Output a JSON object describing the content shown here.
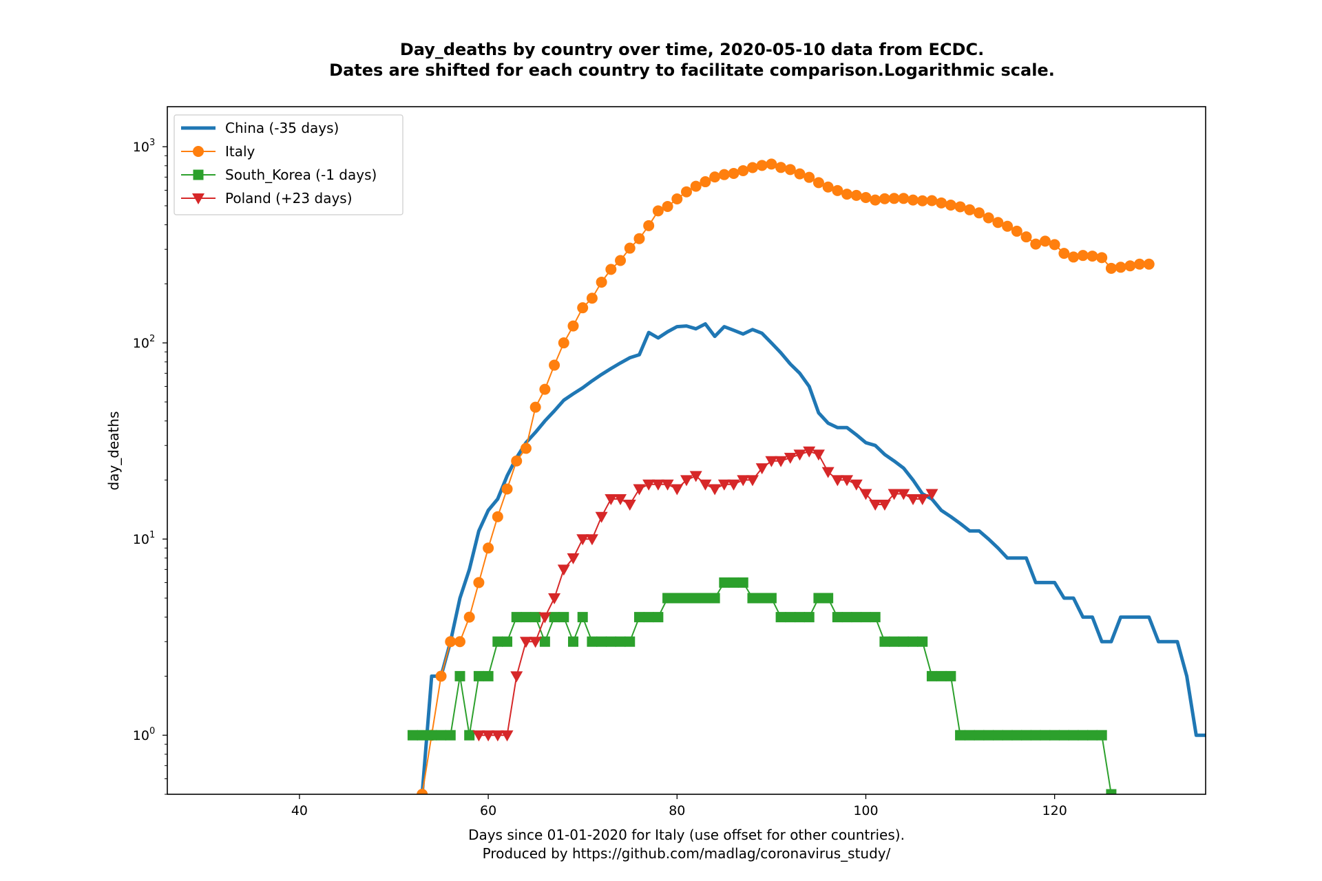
{
  "chart_data": {
    "type": "line",
    "title": [
      "Day_deaths by country over time, 2020-05-10 data from ECDC.",
      "Dates are shifted for each country to facilitate comparison.Logarithmic scale."
    ],
    "xlabel": [
      "Days since 01-01-2020 for Italy (use offset for other countries).",
      "Produced by https://github.com/madlag/coronavirus_study/"
    ],
    "ylabel": "day_deaths",
    "xlim": [
      26,
      136
    ],
    "ylim": [
      0.5,
      1600
    ],
    "yscale": "log",
    "grid": false,
    "legend_position": "top-left",
    "x_ticks": [
      40,
      60,
      80,
      100,
      120
    ],
    "y_ticks": [
      {
        "base": "10",
        "exp": "0",
        "value": 1
      },
      {
        "base": "10",
        "exp": "1",
        "value": 10
      },
      {
        "base": "10",
        "exp": "2",
        "value": 100
      },
      {
        "base": "10",
        "exp": "3",
        "value": 1000
      }
    ],
    "series": [
      {
        "name": "China (-35 days)",
        "color": "#1f77b4",
        "marker": "none",
        "linewidth": 5,
        "x": [
          53,
          54,
          55,
          56,
          57,
          58,
          59,
          60,
          61,
          62,
          63,
          64,
          65,
          66,
          67,
          68,
          69,
          70,
          71,
          72,
          73,
          74,
          75,
          76,
          77,
          78,
          79,
          80,
          81,
          82,
          83,
          84,
          85,
          86,
          87,
          88,
          89,
          90,
          91,
          92,
          93,
          94,
          95,
          96,
          97,
          98,
          99,
          100,
          101,
          102,
          103,
          104,
          105,
          106,
          107,
          108,
          109,
          110,
          111,
          112,
          113,
          114,
          115,
          116,
          117,
          118,
          119,
          120,
          121,
          122,
          123,
          124,
          125,
          126,
          127,
          128,
          129,
          130,
          131,
          132,
          133,
          134,
          135,
          136
        ],
        "y": [
          0.5,
          2,
          2,
          3,
          5,
          7,
          11,
          14,
          16,
          21,
          26,
          31,
          35,
          40,
          45,
          51,
          55,
          59,
          64,
          69,
          74,
          79,
          84,
          87,
          113,
          106,
          114,
          121,
          122,
          118,
          125,
          108,
          121,
          116,
          111,
          117,
          112,
          100,
          89,
          78,
          70,
          60,
          44,
          39,
          37,
          37,
          34,
          31,
          30,
          27,
          25,
          23,
          20,
          17,
          16,
          14,
          13,
          12,
          11,
          11,
          10,
          9,
          8,
          8,
          8,
          6,
          6,
          6,
          5,
          5,
          4,
          4,
          3,
          3,
          4,
          4,
          4,
          4,
          3,
          3,
          3,
          2,
          1,
          1
        ]
      },
      {
        "name": "Italy",
        "color": "#ff7f0e",
        "marker": "circle",
        "linewidth": 2,
        "x": [
          53,
          54,
          55,
          56,
          57,
          58,
          59,
          60,
          61,
          62,
          63,
          64,
          65,
          66,
          67,
          68,
          69,
          70,
          71,
          72,
          73,
          74,
          75,
          76,
          77,
          78,
          79,
          80,
          81,
          82,
          83,
          84,
          85,
          86,
          87,
          88,
          89,
          90,
          91,
          92,
          93,
          94,
          95,
          96,
          97,
          98,
          99,
          100,
          101,
          102,
          103,
          104,
          105,
          106,
          107,
          108,
          109,
          110,
          111,
          112,
          113,
          114,
          115,
          116,
          117,
          118,
          119,
          120,
          121,
          122,
          123,
          124,
          125,
          126,
          127,
          128,
          129,
          130
        ],
        "y": [
          0.5,
          1,
          2,
          3,
          3,
          4,
          6,
          9,
          13,
          18,
          25,
          29,
          47,
          58,
          77,
          100,
          122,
          151,
          169,
          204,
          237,
          263,
          304,
          340,
          396,
          471,
          496,
          542,
          589,
          629,
          663,
          701,
          721,
          731,
          755,
          783,
          803,
          816,
          784,
          765,
          727,
          698,
          656,
          623,
          598,
          573,
          565,
          551,
          535,
          543,
          545,
          545,
          535,
          530,
          531,
          517,
          504,
          494,
          477,
          460,
          434,
          411,
          393,
          371,
          347,
          319,
          330,
          317,
          286,
          274,
          279,
          277,
          272,
          240,
          243,
          247,
          252,
          252
        ]
      },
      {
        "name": "South_Korea (-1 days)",
        "color": "#2ca02c",
        "marker": "square",
        "linewidth": 2,
        "x": [
          52,
          53,
          54,
          55,
          56,
          57,
          58,
          59,
          60,
          61,
          62,
          63,
          64,
          65,
          66,
          67,
          68,
          69,
          70,
          71,
          72,
          73,
          74,
          75,
          76,
          77,
          78,
          79,
          80,
          81,
          82,
          83,
          84,
          85,
          86,
          87,
          88,
          89,
          90,
          91,
          92,
          93,
          94,
          95,
          96,
          97,
          98,
          99,
          100,
          101,
          102,
          103,
          104,
          105,
          106,
          107,
          108,
          109,
          110,
          111,
          112,
          113,
          114,
          115,
          116,
          117,
          118,
          119,
          120,
          121,
          122,
          123,
          124,
          125,
          126
        ],
        "y": [
          1,
          1,
          1,
          1,
          1,
          2,
          1,
          2,
          2,
          3,
          3,
          4,
          4,
          4,
          3,
          4,
          4,
          3,
          4,
          3,
          3,
          3,
          3,
          3,
          4,
          4,
          4,
          5,
          5,
          5,
          5,
          5,
          5,
          6,
          6,
          6,
          5,
          5,
          5,
          4,
          4,
          4,
          4,
          5,
          5,
          4,
          4,
          4,
          4,
          4,
          3,
          3,
          3,
          3,
          3,
          2,
          2,
          2,
          1,
          1,
          1,
          1,
          1,
          1,
          1,
          1,
          1,
          1,
          1,
          1,
          1,
          1,
          1,
          1,
          0.5
        ]
      },
      {
        "name": "Poland (+23 days)",
        "color": "#d62728",
        "marker": "triangle-down",
        "linewidth": 2,
        "x": [
          59,
          60,
          61,
          62,
          63,
          64,
          65,
          66,
          67,
          68,
          69,
          70,
          71,
          72,
          73,
          74,
          75,
          76,
          77,
          78,
          79,
          80,
          81,
          82,
          83,
          84,
          85,
          86,
          87,
          88,
          89,
          90,
          91,
          92,
          93,
          94,
          95,
          96,
          97,
          98,
          99,
          100,
          101,
          102,
          103,
          104,
          105,
          106,
          107
        ],
        "y": [
          1,
          1,
          1,
          1,
          2,
          3,
          3,
          4,
          5,
          7,
          8,
          10,
          10,
          13,
          16,
          16,
          15,
          18,
          19,
          19,
          19,
          18,
          20,
          21,
          19,
          18,
          19,
          19,
          20,
          20,
          23,
          25,
          25,
          26,
          27,
          28,
          27,
          22,
          20,
          20,
          19,
          17,
          15,
          15,
          17,
          17,
          16,
          16,
          17
        ]
      }
    ]
  }
}
